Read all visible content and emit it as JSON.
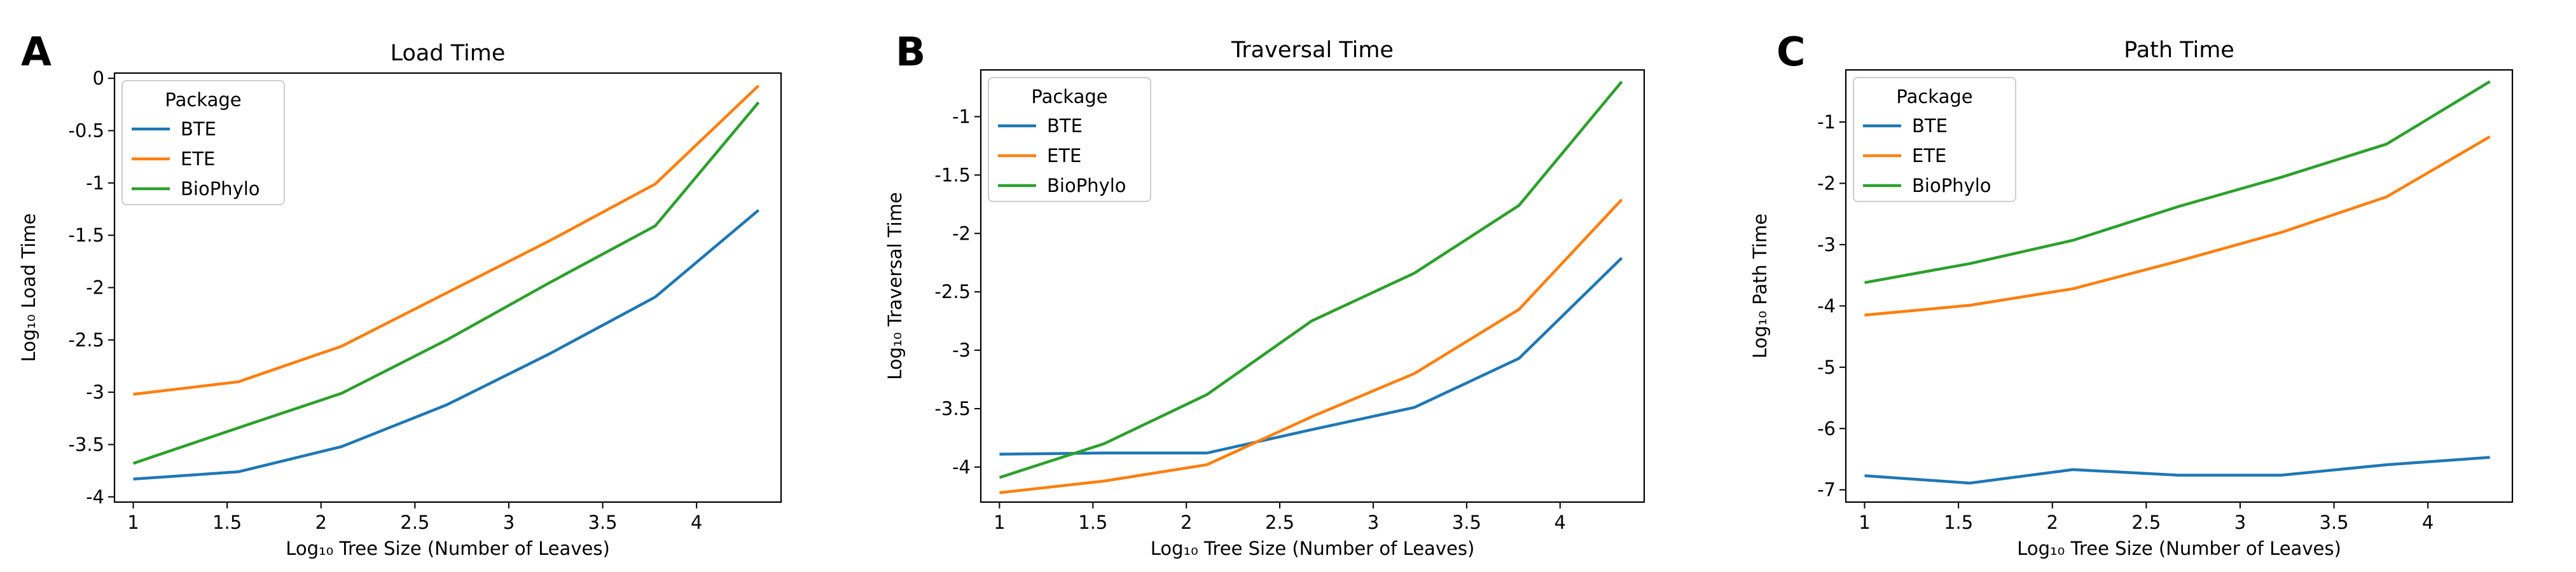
{
  "chart_data": [
    {
      "panel": "A",
      "type": "line",
      "title": "Load Time",
      "xlabel": "Log₁₀ Tree Size (Number of Leaves)",
      "ylabel": "Log₁₀ Load Time",
      "xlim": [
        0.9,
        4.45
      ],
      "ylim": [
        -4.05,
        0.05
      ],
      "xticks": [
        1.0,
        1.5,
        2.0,
        2.5,
        3.0,
        3.5,
        4.0
      ],
      "yticks": [
        -4.0,
        -3.5,
        -3.0,
        -2.5,
        -2.0,
        -1.5,
        -1.0,
        -0.5,
        0.0
      ],
      "x": [
        1.0,
        1.56,
        2.11,
        2.67,
        3.22,
        3.78,
        4.33
      ],
      "legend": {
        "title": "Package",
        "position": "upper-left"
      },
      "grid": false,
      "series": [
        {
          "name": "BTE",
          "color": "#1f77b4",
          "values": [
            -3.83,
            -3.76,
            -3.52,
            -3.12,
            -2.63,
            -2.09,
            -1.26
          ]
        },
        {
          "name": "ETE",
          "color": "#ff7f0e",
          "values": [
            -3.02,
            -2.9,
            -2.56,
            -2.05,
            -1.55,
            -1.01,
            -0.07
          ]
        },
        {
          "name": "BioPhylo",
          "color": "#2ca02c",
          "values": [
            -3.68,
            -3.34,
            -3.01,
            -2.5,
            -1.95,
            -1.41,
            -0.23
          ]
        }
      ]
    },
    {
      "panel": "B",
      "type": "line",
      "title": "Traversal Time",
      "xlabel": "Log₁₀ Tree Size (Number of Leaves)",
      "ylabel": "Log₁₀ Traversal Time",
      "xlim": [
        0.9,
        4.45
      ],
      "ylim": [
        -4.3,
        -0.6
      ],
      "xticks": [
        1.0,
        1.5,
        2.0,
        2.5,
        3.0,
        3.5,
        4.0
      ],
      "yticks": [
        -4.0,
        -3.5,
        -3.0,
        -2.5,
        -2.0,
        -1.5,
        -1.0
      ],
      "x": [
        1.0,
        1.56,
        2.11,
        2.67,
        3.22,
        3.78,
        4.33
      ],
      "legend": {
        "title": "Package",
        "position": "upper-left"
      },
      "grid": false,
      "series": [
        {
          "name": "BTE",
          "color": "#1f77b4",
          "values": [
            -3.89,
            -3.88,
            -3.88,
            -3.68,
            -3.49,
            -3.07,
            -2.21
          ]
        },
        {
          "name": "ETE",
          "color": "#ff7f0e",
          "values": [
            -4.22,
            -4.12,
            -3.98,
            -3.57,
            -3.2,
            -2.65,
            -1.71
          ]
        },
        {
          "name": "BioPhylo",
          "color": "#2ca02c",
          "values": [
            -4.09,
            -3.8,
            -3.38,
            -2.75,
            -2.34,
            -1.76,
            -0.7
          ]
        }
      ]
    },
    {
      "panel": "C",
      "type": "line",
      "title": "Path Time",
      "xlabel": "Log₁₀ Tree Size (Number of Leaves)",
      "ylabel": "Log₁₀ Path Time",
      "xlim": [
        0.9,
        4.45
      ],
      "ylim": [
        -7.2,
        -0.15
      ],
      "xticks": [
        1.0,
        1.5,
        2.0,
        2.5,
        3.0,
        3.5,
        4.0
      ],
      "yticks": [
        -7,
        -6,
        -5,
        -4,
        -3,
        -2,
        -1
      ],
      "x": [
        1.0,
        1.56,
        2.11,
        2.67,
        3.22,
        3.78,
        4.33
      ],
      "legend": {
        "title": "Package",
        "position": "upper-left"
      },
      "grid": false,
      "series": [
        {
          "name": "BTE",
          "color": "#1f77b4",
          "values": [
            -6.77,
            -6.89,
            -6.67,
            -6.76,
            -6.76,
            -6.59,
            -6.47
          ]
        },
        {
          "name": "ETE",
          "color": "#ff7f0e",
          "values": [
            -4.15,
            -3.99,
            -3.72,
            -3.27,
            -2.8,
            -2.22,
            -1.24
          ]
        },
        {
          "name": "BioPhylo",
          "color": "#2ca02c",
          "values": [
            -3.62,
            -3.31,
            -2.93,
            -2.38,
            -1.9,
            -1.36,
            -0.34
          ]
        }
      ]
    }
  ]
}
